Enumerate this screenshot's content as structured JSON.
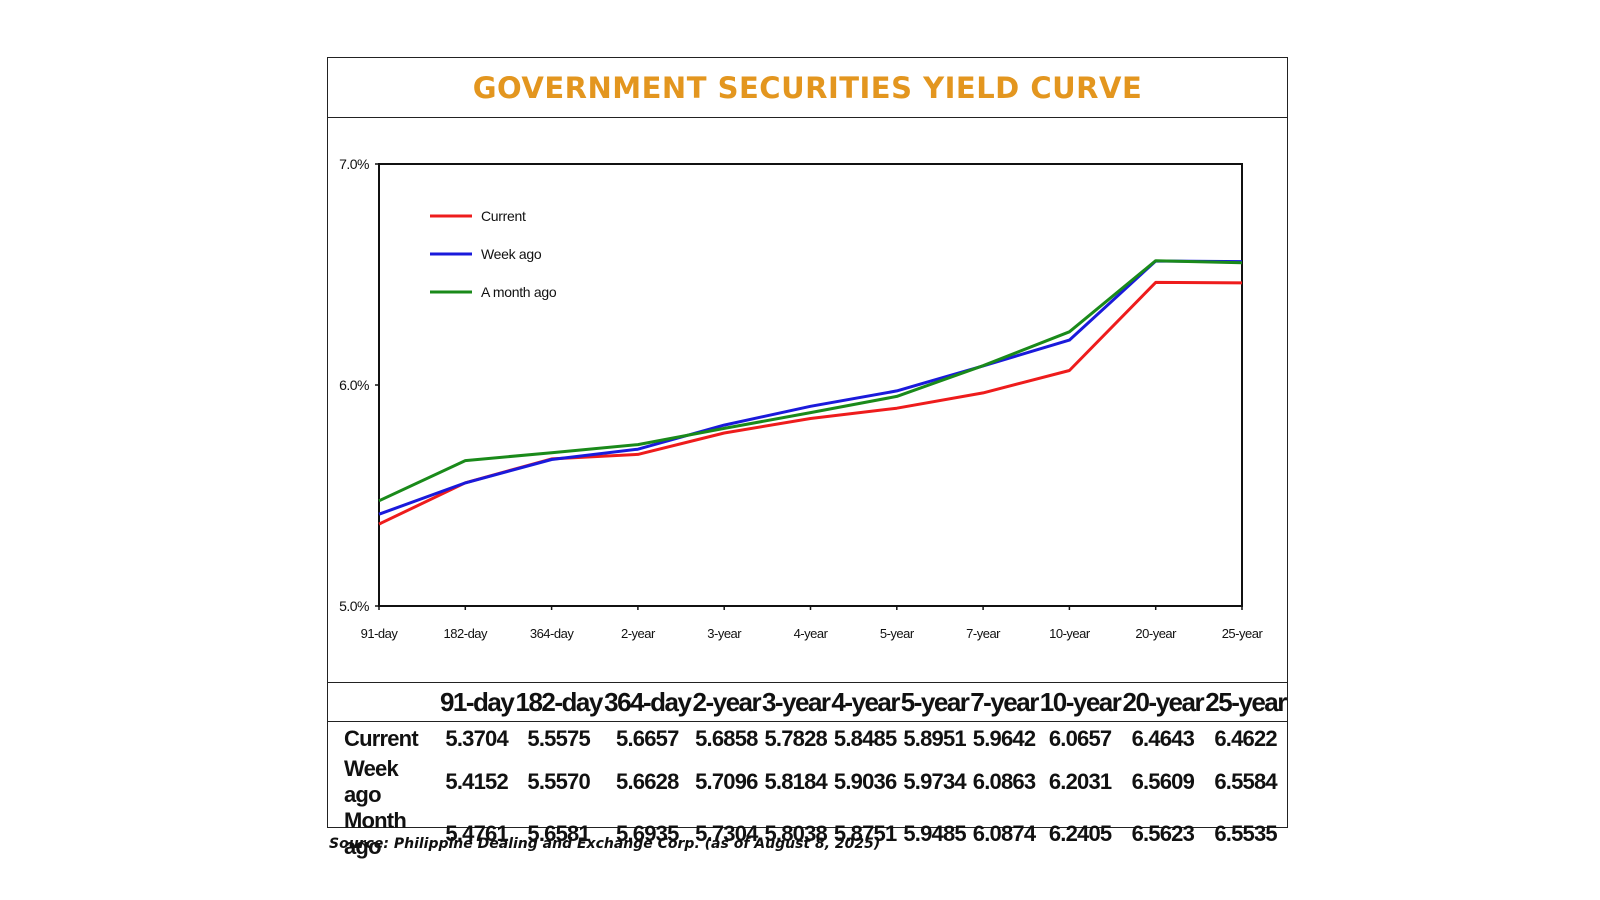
{
  "title": "GOVERNMENT SECURITIES YIELD CURVE",
  "source": "Source: Philippine Dealing and Exchange Corp. (as of August 8, 2025)",
  "colors": {
    "title": "#e3961f",
    "current": "#ee1c1c",
    "week_ago": "#1a1adb",
    "month_ago": "#1a8a1a"
  },
  "chart_data": {
    "type": "line",
    "title": "GOVERNMENT SECURITIES YIELD CURVE",
    "categories": [
      "91-day",
      "182-day",
      "364-day",
      "2-year",
      "3-year",
      "4-year",
      "5-year",
      "7-year",
      "10-year",
      "20-year",
      "25-year"
    ],
    "ylim": [
      5.0,
      7.0
    ],
    "yticks": [
      5.0,
      6.0,
      7.0
    ],
    "ytick_labels": [
      "5.0%",
      "6.0%",
      "7.0%"
    ],
    "xlabel": "",
    "ylabel": "",
    "legend_position": "top-left",
    "series": [
      {
        "name": "Current",
        "color": "#ee1c1c",
        "values": [
          5.3704,
          5.5575,
          5.6657,
          5.6858,
          5.7828,
          5.8485,
          5.8951,
          5.9642,
          6.0657,
          6.4643,
          6.4622
        ]
      },
      {
        "name": "Week ago",
        "color": "#1a1adb",
        "values": [
          5.4152,
          5.557,
          5.6628,
          5.7096,
          5.8184,
          5.9036,
          5.9734,
          6.0863,
          6.2031,
          6.5609,
          6.5584
        ]
      },
      {
        "name": "A month ago",
        "color": "#1a8a1a",
        "values": [
          5.4761,
          5.6581,
          5.6935,
          5.7304,
          5.8038,
          5.8751,
          5.9485,
          6.0874,
          6.2405,
          6.5623,
          6.5535
        ]
      }
    ]
  },
  "table": {
    "headers": [
      "91-day",
      "182-day",
      "364-day",
      "2-year",
      "3-year",
      "4-year",
      "5-year",
      "7-year",
      "10-year",
      "20-year",
      "25-year"
    ],
    "rows": [
      {
        "label": "Current",
        "values": [
          "5.3704",
          "5.5575",
          "5.6657",
          "5.6858",
          "5.7828",
          "5.8485",
          "5.8951",
          "5.9642",
          "6.0657",
          "6.4643",
          "6.4622"
        ]
      },
      {
        "label": "Week ago",
        "values": [
          "5.4152",
          "5.5570",
          "5.6628",
          "5.7096",
          "5.8184",
          "5.9036",
          "5.9734",
          "6.0863",
          "6.2031",
          "6.5609",
          "6.5584"
        ]
      },
      {
        "label": "Month ago",
        "values": [
          "5.4761",
          "5.6581",
          "5.6935",
          "5.7304",
          "5.8038",
          "5.8751",
          "5.9485",
          "6.0874",
          "6.2405",
          "6.5623",
          "6.5535"
        ]
      }
    ]
  }
}
